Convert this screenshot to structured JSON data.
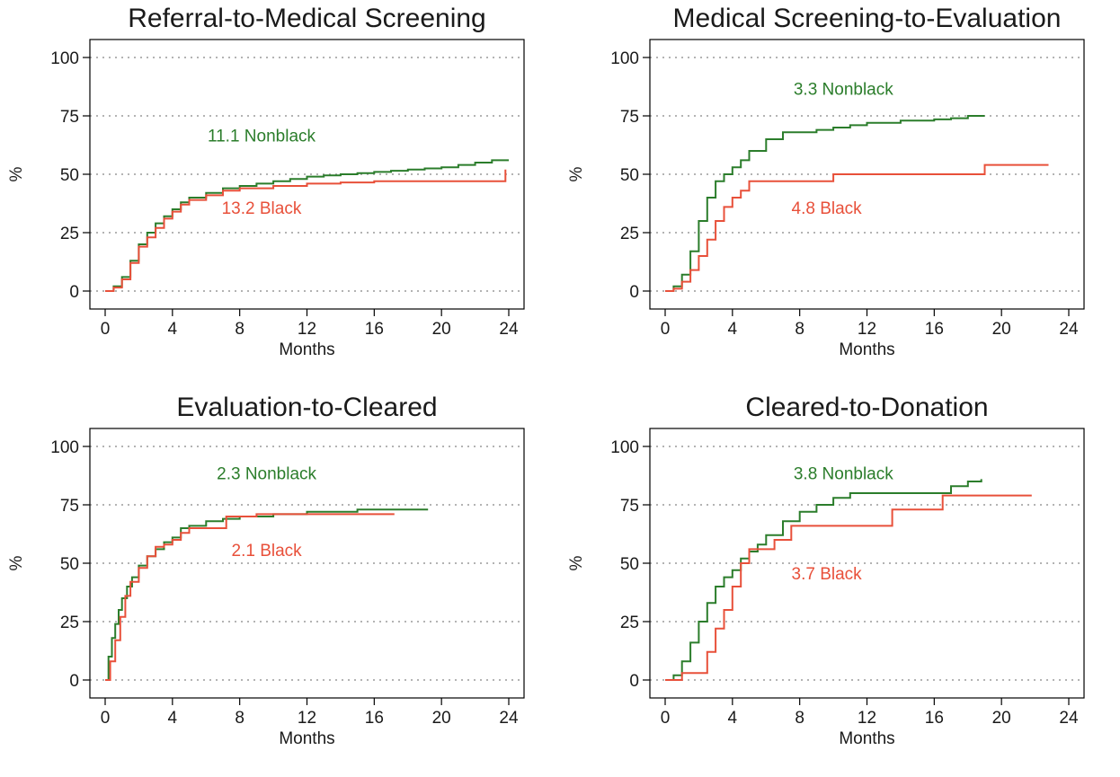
{
  "colors": {
    "nonblack": "#2b7d2b",
    "black": "#e8503a",
    "frame": "#000000",
    "grid": "#9a9a9a"
  },
  "chart_data": [
    {
      "type": "line",
      "title": "Referral-to-Medical Screening",
      "xlabel": "Months",
      "ylabel": "%",
      "xlim": [
        0,
        24
      ],
      "ylim": [
        0,
        100
      ],
      "xticks": [
        0,
        4,
        8,
        12,
        16,
        20,
        24
      ],
      "yticks": [
        0,
        25,
        50,
        75,
        100
      ],
      "grid": "horizontal dotted",
      "series": [
        {
          "color": "#2b7d2b",
          "x": [
            0,
            0.5,
            1,
            1.5,
            2,
            2.5,
            3,
            3.5,
            4,
            4.5,
            5,
            6,
            7,
            8,
            9,
            10,
            11,
            12,
            13,
            14,
            15,
            16,
            17,
            18,
            19,
            20,
            21,
            22,
            23,
            24
          ],
          "y": [
            0,
            2,
            6,
            13,
            20,
            25,
            29,
            32,
            35,
            38,
            40,
            42,
            44,
            45,
            46,
            47,
            48,
            49,
            49.5,
            50,
            50.5,
            51,
            51.5,
            52,
            52.5,
            53,
            54,
            55,
            56,
            56
          ]
        },
        {
          "color": "#e8503a",
          "x": [
            0,
            0.5,
            1,
            1.5,
            2,
            2.5,
            3,
            3.5,
            4,
            4.5,
            5,
            6,
            7,
            8,
            9,
            10,
            12,
            14,
            16,
            18,
            20,
            22,
            23.8,
            23.8
          ],
          "y": [
            0,
            1.5,
            5,
            12,
            19,
            23,
            27,
            31,
            34,
            37,
            39,
            41,
            43,
            44,
            44,
            45,
            46,
            46.5,
            47,
            47,
            47,
            47,
            47,
            52
          ]
        }
      ],
      "annotations": [
        {
          "text": "11.1 Nonblack",
          "x": 9.3,
          "y": 64,
          "color": "#2b7d2b"
        },
        {
          "text": "13.2 Black",
          "x": 9.3,
          "y": 33,
          "color": "#e8503a"
        }
      ]
    },
    {
      "type": "line",
      "title": "Medical Screening-to-Evaluation",
      "xlabel": "Months",
      "ylabel": "%",
      "xlim": [
        0,
        24
      ],
      "ylim": [
        0,
        100
      ],
      "xticks": [
        0,
        4,
        8,
        12,
        16,
        20,
        24
      ],
      "yticks": [
        0,
        25,
        50,
        75,
        100
      ],
      "grid": "horizontal dotted",
      "series": [
        {
          "color": "#2b7d2b",
          "x": [
            0,
            0.5,
            1,
            1.5,
            2,
            2.5,
            3,
            3.5,
            4,
            4.5,
            5,
            6,
            7,
            8,
            9,
            10,
            11,
            12,
            14,
            16,
            17,
            18,
            19
          ],
          "y": [
            0,
            2,
            7,
            17,
            30,
            40,
            47,
            50,
            53,
            56,
            60,
            65,
            68,
            68,
            69,
            70,
            71,
            72,
            73,
            73.5,
            74,
            75,
            75
          ]
        },
        {
          "color": "#e8503a",
          "x": [
            0,
            0.5,
            1,
            1.5,
            2,
            2.5,
            3,
            3.5,
            4,
            4.5,
            5,
            6,
            9.5,
            10,
            19,
            19,
            22.8
          ],
          "y": [
            0,
            1,
            4,
            9,
            15,
            22,
            30,
            36,
            40,
            43,
            47,
            47,
            47,
            50,
            50,
            54,
            54
          ]
        }
      ],
      "annotations": [
        {
          "text": "3.3 Nonblack",
          "x": 10.6,
          "y": 84,
          "color": "#2b7d2b"
        },
        {
          "text": "4.8 Black",
          "x": 9.6,
          "y": 33,
          "color": "#e8503a"
        }
      ]
    },
    {
      "type": "line",
      "title": "Evaluation-to-Cleared",
      "xlabel": "Months",
      "ylabel": "%",
      "xlim": [
        0,
        24
      ],
      "ylim": [
        0,
        100
      ],
      "xticks": [
        0,
        4,
        8,
        12,
        16,
        20,
        24
      ],
      "yticks": [
        0,
        25,
        50,
        75,
        100
      ],
      "grid": "horizontal dotted",
      "series": [
        {
          "color": "#2b7d2b",
          "x": [
            0,
            0.2,
            0.4,
            0.6,
            0.8,
            1,
            1.3,
            1.6,
            2,
            2.5,
            3,
            3.5,
            4,
            4.5,
            5,
            6,
            7,
            8,
            10,
            12,
            15,
            19.2
          ],
          "y": [
            0,
            10,
            18,
            24,
            30,
            35,
            40,
            44,
            49,
            53,
            56,
            59,
            61,
            65,
            66,
            68,
            69,
            70,
            71,
            72,
            73,
            73
          ]
        },
        {
          "color": "#e8503a",
          "x": [
            0,
            0.3,
            0.6,
            0.9,
            1.2,
            1.5,
            2,
            2.5,
            3,
            3.5,
            4,
            4.5,
            5,
            6,
            7,
            7.2,
            8,
            9,
            10,
            17.2
          ],
          "y": [
            0,
            8,
            17,
            27,
            36,
            42,
            48,
            53,
            57,
            58,
            60,
            63,
            65,
            65,
            65,
            70,
            70,
            71,
            71,
            71
          ]
        }
      ],
      "annotations": [
        {
          "text": "2.3 Nonblack",
          "x": 9.6,
          "y": 86,
          "color": "#2b7d2b"
        },
        {
          "text": "2.1 Black",
          "x": 9.6,
          "y": 53,
          "color": "#e8503a"
        }
      ]
    },
    {
      "type": "line",
      "title": "Cleared-to-Donation",
      "xlabel": "Months",
      "ylabel": "%",
      "xlim": [
        0,
        24
      ],
      "ylim": [
        0,
        100
      ],
      "xticks": [
        0,
        4,
        8,
        12,
        16,
        20,
        24
      ],
      "yticks": [
        0,
        25,
        50,
        75,
        100
      ],
      "grid": "horizontal dotted",
      "series": [
        {
          "color": "#2b7d2b",
          "x": [
            0,
            0.5,
            1,
            1.5,
            2,
            2.5,
            3,
            3.5,
            4,
            4.5,
            5,
            5.5,
            6,
            7,
            8,
            9,
            10,
            11,
            12,
            14,
            16,
            17,
            18,
            18.8
          ],
          "y": [
            0,
            2,
            8,
            16,
            25,
            33,
            40,
            44,
            47,
            52,
            55,
            58,
            62,
            68,
            72,
            75,
            78,
            80,
            80,
            80,
            80,
            83,
            85,
            86
          ]
        },
        {
          "color": "#e8503a",
          "x": [
            0,
            1,
            2.2,
            2.5,
            3,
            3.5,
            4,
            4.5,
            5,
            6,
            6.5,
            7.5,
            11,
            13,
            13.5,
            16,
            16.5,
            21.8
          ],
          "y": [
            0,
            3,
            3,
            12,
            22,
            30,
            40,
            50,
            56,
            56,
            60,
            66,
            66,
            66,
            73,
            73,
            79,
            79
          ]
        }
      ],
      "annotations": [
        {
          "text": "3.8 Nonblack",
          "x": 10.6,
          "y": 86,
          "color": "#2b7d2b"
        },
        {
          "text": "3.7 Black",
          "x": 9.6,
          "y": 43,
          "color": "#e8503a"
        }
      ]
    }
  ]
}
